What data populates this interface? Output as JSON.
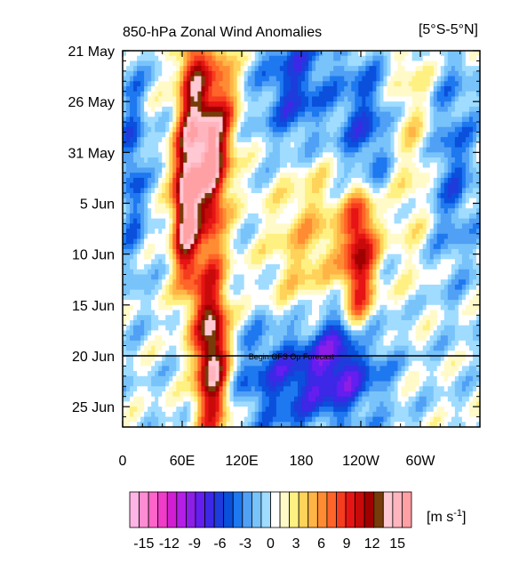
{
  "chart_data": {
    "type": "heatmap",
    "title": "850-hPa Zonal Wind Anomalies",
    "region": "[5°S-5°N]",
    "x_ticks": [
      "0",
      "60E",
      "120E",
      "180",
      "120W",
      "60W"
    ],
    "y_ticks": [
      "21 May",
      "26 May",
      "31 May",
      "5 Jun",
      "10 Jun",
      "15 Jun",
      "20 Jun",
      "25 Jun"
    ],
    "xlim": [
      0,
      360
    ],
    "ylim": [
      "21 May",
      "27 Jun"
    ],
    "annotation": "Begin GFS Op Forecast",
    "forecast_start": "20 Jun",
    "colorbar": {
      "units": "[m s-1]",
      "tick_labels": [
        "-15",
        "-12",
        "-9",
        "-6",
        "-3",
        "0",
        "3",
        "6",
        "9",
        "12",
        "15"
      ],
      "colors": [
        "#ffb4e6",
        "#ff8cd2",
        "#ff64c8",
        "#f03cc8",
        "#d21ed2",
        "#b41ee6",
        "#8c1ee6",
        "#641ef0",
        "#3c28e6",
        "#1e3cdc",
        "#0a50dc",
        "#1e78f0",
        "#50a0f5",
        "#78c3fa",
        "#a0dcff",
        "#ffffff",
        "#fffac8",
        "#fff082",
        "#ffd25a",
        "#ffb446",
        "#ff8c32",
        "#ff6428",
        "#f53c1e",
        "#e61414",
        "#c80a0a",
        "#a00000",
        "#783c0a",
        "#ffc8d2",
        "#ffb4be",
        "#ffa0a5"
      ]
    }
  }
}
